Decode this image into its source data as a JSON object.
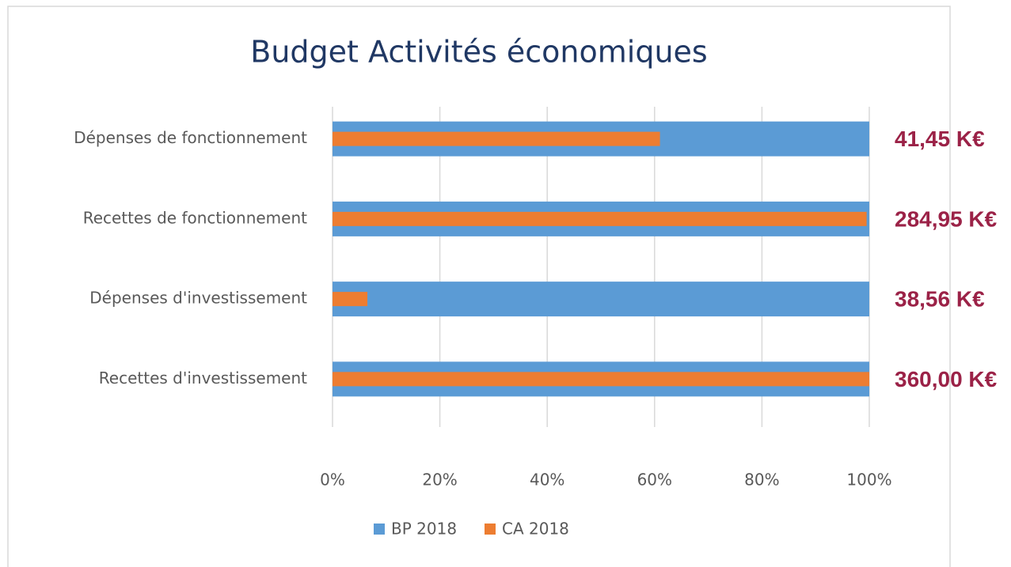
{
  "chart_data": {
    "type": "bar",
    "orientation": "horizontal",
    "title": "Budget Activités économiques",
    "categories": [
      "Dépenses de fonctionnement",
      "Recettes de fonctionnement",
      "Dépenses d'investissement",
      "Recettes d'investissement"
    ],
    "series": [
      {
        "name": "BP 2018",
        "color": "#5b9bd5",
        "values": [
          100,
          100,
          100,
          100
        ]
      },
      {
        "name": "CA 2018",
        "color": "#ed7d31",
        "values": [
          61,
          99.5,
          6.5,
          100
        ]
      }
    ],
    "annotations": [
      "41,45 K€",
      "284,95 K€",
      "38,56 K€",
      "360,00 K€"
    ],
    "xlim": [
      0,
      100
    ],
    "xticks": [
      {
        "value": 0,
        "label": "0%"
      },
      {
        "value": 20,
        "label": "20%"
      },
      {
        "value": 40,
        "label": "40%"
      },
      {
        "value": 60,
        "label": "60%"
      },
      {
        "value": 80,
        "label": "80%"
      },
      {
        "value": 100,
        "label": "100%"
      }
    ],
    "grid": true,
    "legend": "bottom"
  }
}
